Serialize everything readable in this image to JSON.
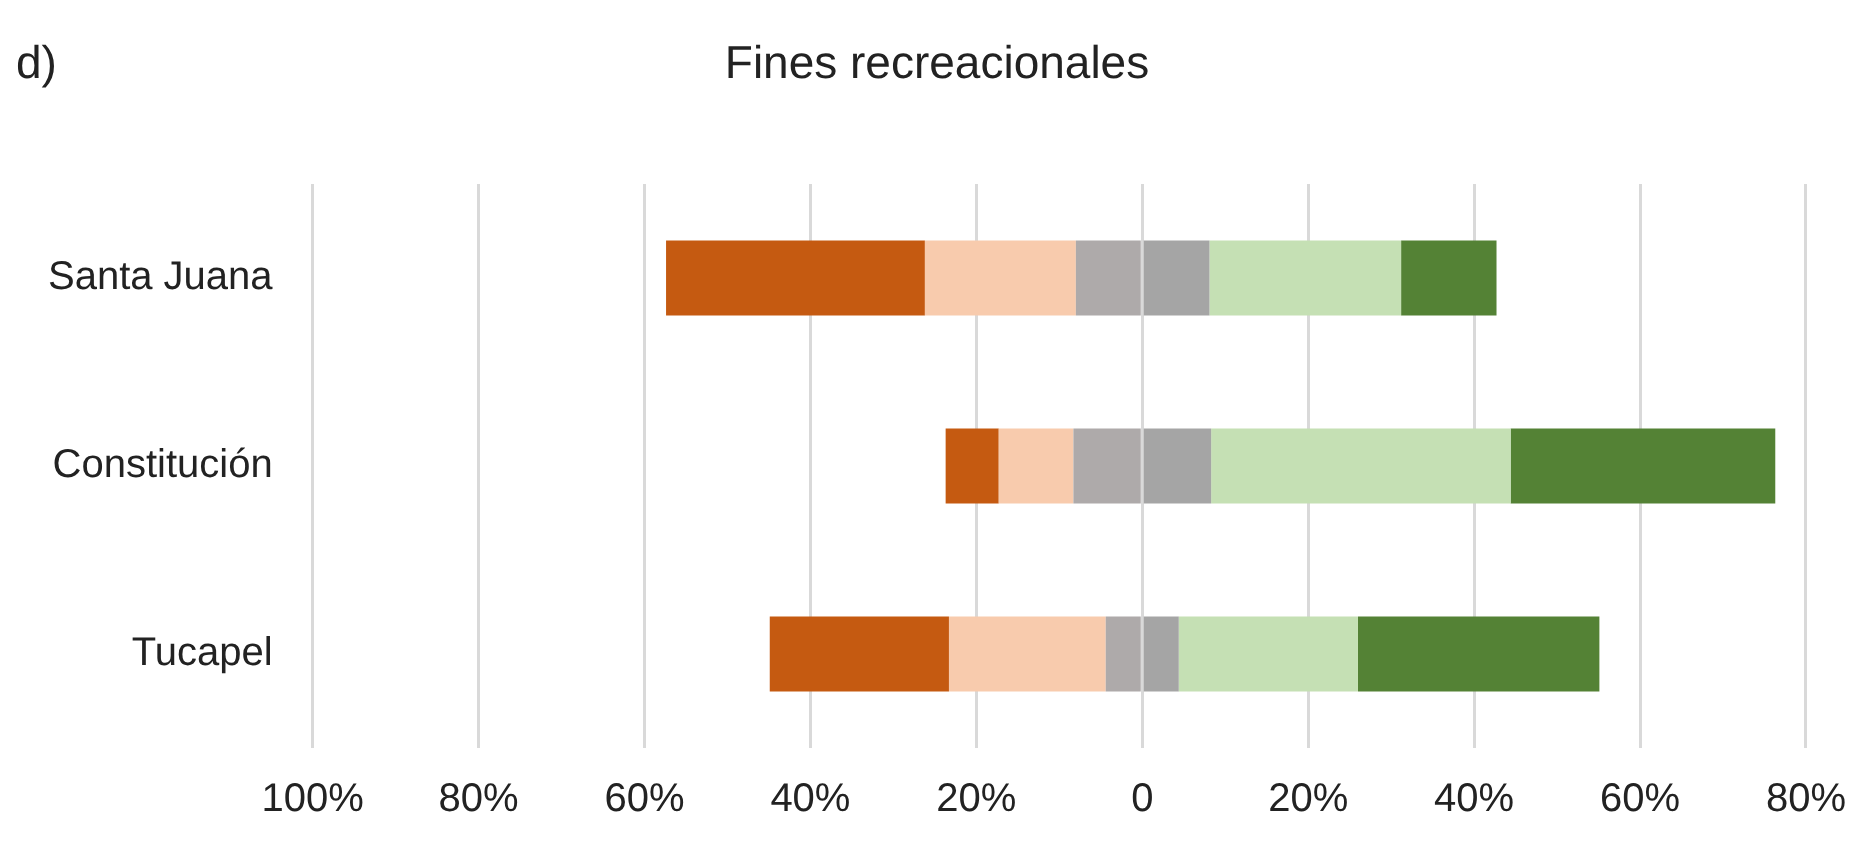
{
  "chart_data": {
    "type": "bar",
    "title": "Fines recreacionales",
    "annotations": [
      "d)"
    ],
    "orientation": "horizontal",
    "stacked": true,
    "categories": [
      "Santa Juana",
      "Constitución",
      "Tucapel"
    ],
    "series": [
      {
        "color": "#aeaaaa",
        "values": [
          -8.0,
          -8.3,
          -4.4
        ]
      },
      {
        "color": "#f8cbad",
        "values": [
          -18.2,
          -9.0,
          -18.9
        ]
      },
      {
        "color": "#c55a11",
        "values": [
          -31.2,
          -6.4,
          -21.6
        ]
      },
      {
        "color": "#a5a5a5",
        "values": [
          8.1,
          8.3,
          4.4
        ]
      },
      {
        "color": "#c5e0b4",
        "values": [
          23.1,
          36.1,
          21.6
        ]
      },
      {
        "color": "#548235",
        "values": [
          11.5,
          31.9,
          29.1
        ]
      }
    ],
    "xlim": [
      -100,
      80
    ],
    "xticks": [
      {
        "value": -100,
        "label": "100%"
      },
      {
        "value": -80,
        "label": "80%"
      },
      {
        "value": -60,
        "label": "60%"
      },
      {
        "value": -40,
        "label": "40%"
      },
      {
        "value": -20,
        "label": "20%"
      },
      0,
      {
        "value": 20,
        "label": "20%"
      },
      {
        "value": 40,
        "label": "40%"
      },
      {
        "value": 60,
        "label": "60%"
      },
      {
        "value": 80,
        "label": "80%"
      }
    ],
    "grid": "x",
    "legend": false
  }
}
